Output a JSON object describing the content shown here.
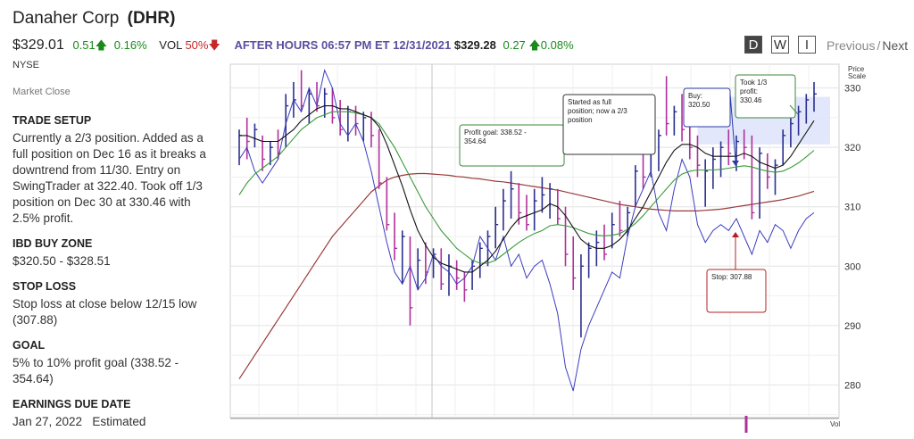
{
  "header": {
    "company": "Danaher Corp",
    "ticker": "(DHR)",
    "price": "$329.01",
    "change": "0.51",
    "change_pct": "0.16%",
    "vol_label": "VOL",
    "vol_pct": "50%",
    "after_hours_label": "AFTER HOURS 06:57 PM ET 12/31/2021",
    "after_hours_price": "$329.28",
    "after_hours_change": "0.27",
    "after_hours_change_pct": "0.08%",
    "exchange": "NYSE",
    "market_status": "Market Close"
  },
  "controls": {
    "period_d": "D",
    "period_w": "W",
    "period_i": "I",
    "previous": "Previous",
    "separator": "/",
    "next": "Next"
  },
  "sidebar": {
    "trade_setup_title": "TRADE SETUP",
    "trade_setup_text": "Currently a 2/3 position. Added as a full position on Dec 16 as it breaks a downtrend from 11/30. Entry on SwingTrader at 322.40. Took off 1/3 position on Dec 30 at 330.46 with 2.5% profit.",
    "buy_zone_title": "IBD BUY ZONE",
    "buy_zone_text": "$320.50 - $328.51",
    "stop_loss_title": "STOP LOSS",
    "stop_loss_text": "Stop loss at close below 12/15 low (307.88)",
    "goal_title": "GOAL",
    "goal_text": "5% to 10% profit goal (338.52 - 354.64)",
    "earnings_title": "EARNINGS DUE DATE",
    "earnings_date": "Jan 27, 2022",
    "earnings_note": "Estimated"
  },
  "colors": {
    "up_bar": "#2b2f8f",
    "down_bar": "#b0309a",
    "ma_short": "#111111",
    "ma_mid": "#3a9a3a",
    "ma_long": "#9a3a3a",
    "rs_line": "#3c3cc0",
    "buy_zone": "#dde3fb"
  },
  "chart_data": {
    "type": "line",
    "price_scale_label": "Price Scale",
    "vol_label": "Vol",
    "y_ticks": [
      280,
      290,
      300,
      310,
      320,
      330
    ],
    "ylim": [
      274.5,
      334
    ],
    "buy_zone": [
      320.5,
      328.51
    ],
    "annotations": [
      {
        "text": "Profit goal: 338.52 - 354.64",
        "color": "#3a8a3a"
      },
      {
        "text": "Started as full position; now a 2/3 position",
        "color": "#333333"
      },
      {
        "text": "Buy: 320.50",
        "color": "#2b3aa8"
      },
      {
        "text": "Took 1/3 profit: 330.46",
        "color": "#3a8a3a"
      },
      {
        "text": "Stop: 307.88",
        "color": "#b02020"
      }
    ],
    "bars": [
      {
        "h": 323,
        "l": 317,
        "c": 322,
        "d": 0
      },
      {
        "h": 325,
        "l": 318,
        "c": 321,
        "d": 1
      },
      {
        "h": 324,
        "l": 320,
        "c": 323,
        "d": 0
      },
      {
        "h": 322,
        "l": 316,
        "c": 318,
        "d": 1
      },
      {
        "h": 321,
        "l": 317,
        "c": 320,
        "d": 0
      },
      {
        "h": 323,
        "l": 318,
        "c": 319,
        "d": 1
      },
      {
        "h": 329,
        "l": 320,
        "c": 327,
        "d": 0
      },
      {
        "h": 331,
        "l": 325,
        "c": 328,
        "d": 0
      },
      {
        "h": 333,
        "l": 326,
        "c": 327,
        "d": 1
      },
      {
        "h": 330,
        "l": 324,
        "c": 329,
        "d": 0
      },
      {
        "h": 331,
        "l": 326,
        "c": 327,
        "d": 1
      },
      {
        "h": 330,
        "l": 325,
        "c": 329,
        "d": 0
      },
      {
        "h": 330,
        "l": 324,
        "c": 325,
        "d": 1
      },
      {
        "h": 328,
        "l": 322,
        "c": 323,
        "d": 1
      },
      {
        "h": 327,
        "l": 321,
        "c": 326,
        "d": 0
      },
      {
        "h": 327,
        "l": 322,
        "c": 324,
        "d": 1
      },
      {
        "h": 326,
        "l": 321,
        "c": 325,
        "d": 0
      },
      {
        "h": 326,
        "l": 320,
        "c": 322,
        "d": 1
      },
      {
        "h": 323,
        "l": 313,
        "c": 314,
        "d": 1
      },
      {
        "h": 315,
        "l": 306,
        "c": 307,
        "d": 1
      },
      {
        "h": 309,
        "l": 301,
        "c": 303,
        "d": 1
      },
      {
        "h": 306,
        "l": 297,
        "c": 305,
        "d": 0
      },
      {
        "h": 305,
        "l": 290,
        "c": 293,
        "d": 1
      },
      {
        "h": 303,
        "l": 296,
        "c": 301,
        "d": 0
      },
      {
        "h": 304,
        "l": 297,
        "c": 299,
        "d": 1
      },
      {
        "h": 303,
        "l": 298,
        "c": 302,
        "d": 0
      },
      {
        "h": 303,
        "l": 296,
        "c": 297,
        "d": 1
      },
      {
        "h": 302,
        "l": 295,
        "c": 300,
        "d": 0
      },
      {
        "h": 301,
        "l": 296,
        "c": 298,
        "d": 1
      },
      {
        "h": 299,
        "l": 294,
        "c": 296,
        "d": 1
      },
      {
        "h": 301,
        "l": 296,
        "c": 300,
        "d": 0
      },
      {
        "h": 304,
        "l": 298,
        "c": 303,
        "d": 0
      },
      {
        "h": 306,
        "l": 300,
        "c": 305,
        "d": 0
      },
      {
        "h": 310,
        "l": 303,
        "c": 307,
        "d": 0
      },
      {
        "h": 313,
        "l": 306,
        "c": 311,
        "d": 0
      },
      {
        "h": 316,
        "l": 308,
        "c": 313,
        "d": 0
      },
      {
        "h": 314,
        "l": 307,
        "c": 309,
        "d": 1
      },
      {
        "h": 312,
        "l": 306,
        "c": 307,
        "d": 1
      },
      {
        "h": 313,
        "l": 306,
        "c": 311,
        "d": 0
      },
      {
        "h": 315,
        "l": 309,
        "c": 312,
        "d": 0
      },
      {
        "h": 314,
        "l": 308,
        "c": 313,
        "d": 0
      },
      {
        "h": 313,
        "l": 307,
        "c": 308,
        "d": 1
      },
      {
        "h": 310,
        "l": 300,
        "c": 302,
        "d": 1
      },
      {
        "h": 305,
        "l": 296,
        "c": 298,
        "d": 1
      },
      {
        "h": 302,
        "l": 288,
        "c": 300,
        "d": 0
      },
      {
        "h": 304,
        "l": 298,
        "c": 303,
        "d": 0
      },
      {
        "h": 306,
        "l": 300,
        "c": 304,
        "d": 0
      },
      {
        "h": 307,
        "l": 301,
        "c": 302,
        "d": 1
      },
      {
        "h": 309,
        "l": 303,
        "c": 307,
        "d": 0
      },
      {
        "h": 311,
        "l": 305,
        "c": 306,
        "d": 1
      },
      {
        "h": 310,
        "l": 305,
        "c": 309,
        "d": 0
      },
      {
        "h": 317,
        "l": 310,
        "c": 316,
        "d": 0
      },
      {
        "h": 320,
        "l": 313,
        "c": 315,
        "d": 1
      },
      {
        "h": 320,
        "l": 315,
        "c": 319,
        "d": 0
      },
      {
        "h": 323,
        "l": 316,
        "c": 322,
        "d": 0
      },
      {
        "h": 332,
        "l": 322,
        "c": 324,
        "d": 1
      },
      {
        "h": 327,
        "l": 322,
        "c": 326,
        "d": 0
      },
      {
        "h": 329,
        "l": 321,
        "c": 323,
        "d": 1
      },
      {
        "h": 325,
        "l": 318,
        "c": 320,
        "d": 1
      },
      {
        "h": 322,
        "l": 315,
        "c": 317,
        "d": 1
      },
      {
        "h": 318,
        "l": 310,
        "c": 316,
        "d": 0
      },
      {
        "h": 320,
        "l": 313,
        "c": 318,
        "d": 0
      },
      {
        "h": 321,
        "l": 315,
        "c": 320,
        "d": 0
      },
      {
        "h": 323,
        "l": 317,
        "c": 319,
        "d": 1
      },
      {
        "h": 322,
        "l": 316,
        "c": 321,
        "d": 0
      },
      {
        "h": 323,
        "l": 318,
        "c": 320,
        "d": 1
      },
      {
        "h": 322,
        "l": 307.88,
        "c": 309,
        "d": 1
      },
      {
        "h": 320,
        "l": 308,
        "c": 319,
        "d": 0
      },
      {
        "h": 319,
        "l": 313,
        "c": 315,
        "d": 1
      },
      {
        "h": 318,
        "l": 312,
        "c": 317,
        "d": 0
      },
      {
        "h": 323,
        "l": 317,
        "c": 322,
        "d": 0
      },
      {
        "h": 325,
        "l": 320,
        "c": 324,
        "d": 0
      },
      {
        "h": 327,
        "l": 322,
        "c": 326,
        "d": 0
      },
      {
        "h": 329,
        "l": 324,
        "c": 328,
        "d": 0
      },
      {
        "h": 331,
        "l": 326,
        "c": 329,
        "d": 0
      }
    ],
    "ma_short": [
      322,
      322,
      321.5,
      321,
      321,
      321,
      322,
      323,
      324.5,
      325.5,
      326.5,
      327,
      327,
      326.5,
      326.5,
      326,
      325.5,
      325,
      323.5,
      320.5,
      317,
      313.5,
      309.5,
      306,
      303.5,
      301.5,
      300.5,
      300,
      299.5,
      299,
      299,
      300,
      301,
      302.5,
      304.5,
      306.5,
      308,
      308.5,
      309,
      309.5,
      310.5,
      310,
      308.5,
      306.5,
      304.5,
      303.5,
      303,
      303,
      303.5,
      304.5,
      306,
      308,
      310,
      312.5,
      315,
      317.5,
      319.5,
      320.5,
      320.5,
      320,
      319,
      318.5,
      318.5,
      318.5,
      318.5,
      319,
      318.5,
      317.5,
      317,
      316.5,
      317,
      318.5,
      320.5,
      322.5,
      324.5
    ],
    "ma_mid": [
      312,
      314,
      315.5,
      316.5,
      317.5,
      318.5,
      320,
      321.5,
      323,
      324,
      325,
      325.5,
      326,
      326,
      326,
      325.8,
      325.5,
      325,
      324,
      322,
      320,
      317.5,
      315,
      312.5,
      310,
      308,
      306,
      304.5,
      303,
      302,
      301,
      300.5,
      300.5,
      301,
      302,
      303,
      304,
      304.8,
      305.5,
      306,
      306.8,
      307,
      306.8,
      306.5,
      306,
      305.5,
      305.2,
      305.1,
      305.2,
      305.5,
      306.2,
      307.2,
      308.5,
      310,
      311.5,
      313,
      314.5,
      315.5,
      316,
      316.2,
      316.2,
      316.2,
      316.3,
      316.5,
      316.7,
      316.9,
      316.7,
      316.3,
      316,
      315.8,
      316,
      316.6,
      317.4,
      318.4,
      319.5
    ],
    "ma_long": [
      281,
      283,
      285,
      287,
      289,
      291,
      293,
      295,
      297,
      299,
      301,
      303,
      305,
      306.5,
      308,
      309.5,
      311,
      312.5,
      313.5,
      314.5,
      315,
      315.3,
      315.5,
      315.6,
      315.6,
      315.5,
      315.4,
      315.3,
      315.1,
      315,
      314.8,
      314.7,
      314.5,
      314.3,
      314.2,
      314,
      313.8,
      313.6,
      313.4,
      313.2,
      313,
      312.8,
      312.5,
      312.2,
      311.9,
      311.6,
      311.3,
      311,
      310.7,
      310.4,
      310.2,
      310,
      309.8,
      309.6,
      309.5,
      309.4,
      309.3,
      309.3,
      309.3,
      309.3,
      309.4,
      309.5,
      309.6,
      309.8,
      310,
      310.2,
      310.4,
      310.6,
      310.8,
      311,
      311.2,
      311.5,
      311.8,
      312.2,
      312.6
    ],
    "rs_line": [
      318,
      320,
      316,
      314,
      316,
      318,
      324,
      328,
      326,
      330,
      327,
      333,
      330,
      324,
      322,
      324,
      321,
      316,
      310,
      304,
      299,
      297,
      300,
      296,
      298,
      302,
      300,
      299,
      297,
      298,
      300,
      305,
      303,
      301,
      305,
      300,
      302,
      298,
      300,
      301,
      297,
      292,
      283,
      279,
      286,
      290,
      293,
      296,
      299,
      298,
      305,
      310,
      313,
      316,
      309,
      306,
      313,
      318,
      315,
      307,
      304,
      306,
      307,
      306,
      308,
      305,
      302,
      306,
      304,
      307,
      306,
      303,
      306,
      308,
      309
    ]
  }
}
